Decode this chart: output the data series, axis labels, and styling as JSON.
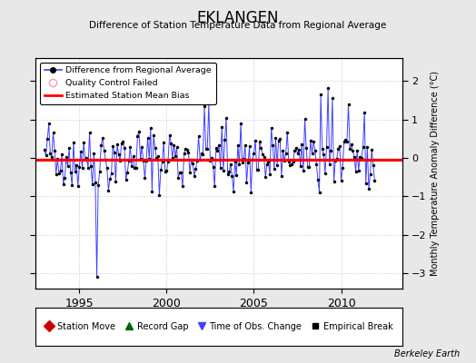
{
  "title": "EKLANGEN",
  "subtitle": "Difference of Station Temperature Data from Regional Average",
  "ylabel": "Monthly Temperature Anomaly Difference (°C)",
  "bias": -0.05,
  "ylim": [
    -3.4,
    2.6
  ],
  "yticks": [
    -3,
    -2,
    -1,
    0,
    1,
    2
  ],
  "xlim": [
    1992.5,
    2013.5
  ],
  "xticks": [
    1995,
    2000,
    2005,
    2010
  ],
  "bg_color": "#e8e8e8",
  "plot_bg": "#ffffff",
  "line_color": "#4040ff",
  "bias_color": "#ff0000",
  "marker_color": "#000000",
  "grid_color": "#d0d0d0",
  "berkeley_earth_text": "Berkeley Earth",
  "seed": 42,
  "n_points": 228,
  "start_year": 1993.0,
  "big_dip_index": 36,
  "big_dip_value": -3.1
}
